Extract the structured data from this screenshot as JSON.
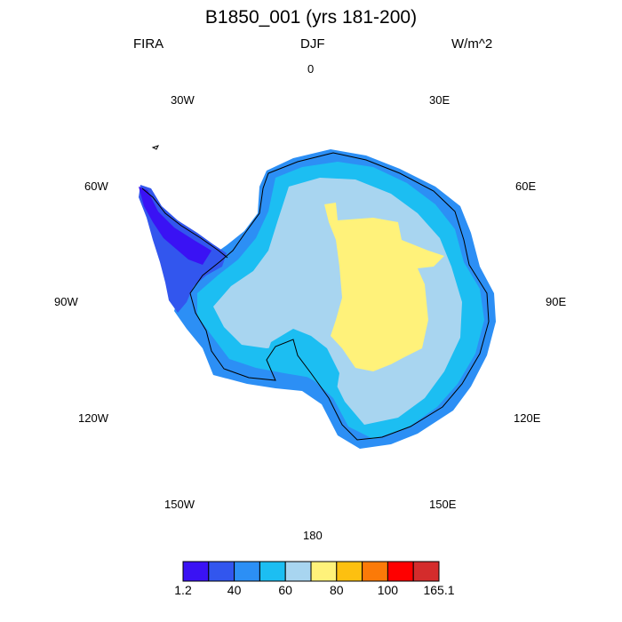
{
  "header": {
    "title": "B1850_001 (yrs 181-200)",
    "left": "FIRA",
    "center": "DJF",
    "right": "W/m^2"
  },
  "longitude_labels": {
    "n": "0",
    "ne30": "30E",
    "ne60": "60E",
    "e90": "90E",
    "e120": "120E",
    "e150": "150E",
    "s180": "180",
    "w150": "150W",
    "w120": "120W",
    "w90": "90W",
    "w60": "60W",
    "w30": "30W"
  },
  "colorbar": {
    "colors": [
      "#3a12f4",
      "#3256ee",
      "#2c8ff5",
      "#1cbef2",
      "#a8d5f0",
      "#fff27a",
      "#fdc010",
      "#fb7a08",
      "#fe0000",
      "#d42c2c"
    ],
    "labels": [
      "1.2",
      "40",
      "60",
      "80",
      "100",
      "165.1"
    ]
  },
  "map_colors": {
    "interior_high": "#fff27a",
    "plateau": "#a8d5f0",
    "slope": "#1cbef2",
    "coast": "#2c8ff5",
    "peninsula_low": "#3256ee",
    "peninsula_min": "#3a12f4",
    "coastline": "#000000"
  }
}
